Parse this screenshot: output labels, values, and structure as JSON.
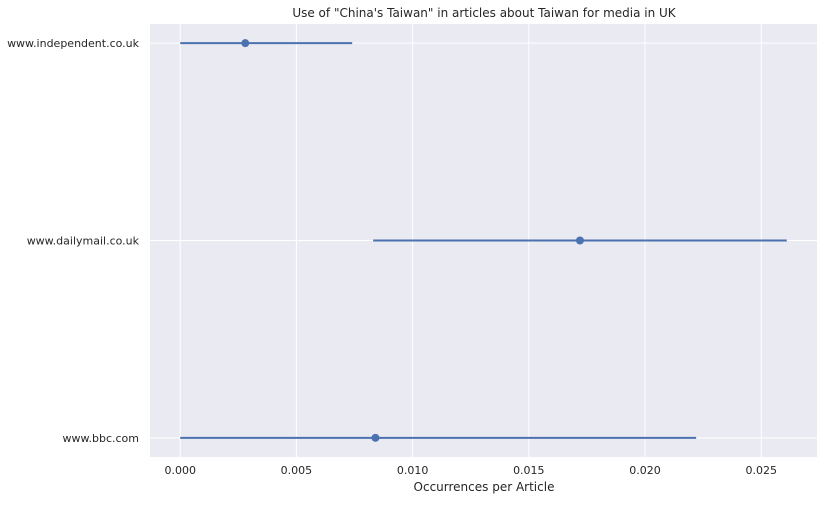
{
  "chart_data": {
    "type": "scatter",
    "title": "Use of \"China's Taiwan\" in articles about Taiwan for media in UK",
    "xlabel": "Occurrences per Article",
    "ylabel": "",
    "xlim": [
      -0.0013,
      0.0274
    ],
    "x_ticks": [
      0.0,
      0.005,
      0.01,
      0.015,
      0.02,
      0.025
    ],
    "x_tick_labels": [
      "0.000",
      "0.005",
      "0.010",
      "0.015",
      "0.020",
      "0.025"
    ],
    "categories": [
      "www.independent.co.uk",
      "www.dailymail.co.uk",
      "www.bbc.com"
    ],
    "values": [
      0.0028,
      0.0172,
      0.0084
    ],
    "error_low": [
      0.0,
      0.0083,
      0.0
    ],
    "error_high": [
      0.0074,
      0.0261,
      0.0222
    ],
    "grid": true,
    "legend": "none",
    "colors": {
      "background": "#eaeaf2",
      "grid": "#ffffff",
      "series": "#4c72b0"
    }
  }
}
